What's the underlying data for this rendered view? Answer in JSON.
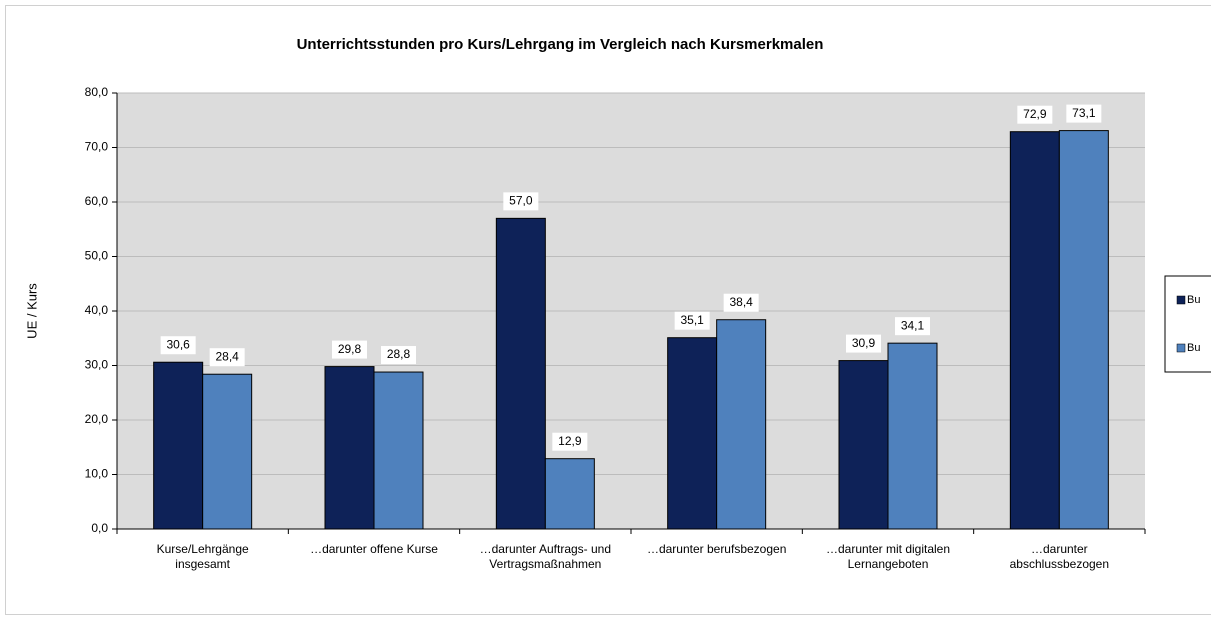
{
  "chart_data": {
    "type": "bar",
    "title": "Unterrichtsstunden pro Kurs/Lehrgang im Vergleich nach Kursmerkmalen",
    "y_label": "UE / Kurs",
    "categories": [
      "Kurse/Lehrgänge\ninsgesamt",
      "…darunter offene Kurse",
      "…darunter Auftrags- und\nVertragsmaßnahmen",
      "…darunter berufsbezogen",
      "…darunter mit digitalen\nLernangeboten",
      "…darunter\nabschlussbezogen"
    ],
    "series": [
      {
        "name": "Bu",
        "color": "#0e2258",
        "values": [
          30.6,
          29.8,
          57.0,
          35.1,
          30.9,
          72.9
        ],
        "value_labels": [
          "30,6",
          "29,8",
          "57,0",
          "35,1",
          "30,9",
          "72,9"
        ]
      },
      {
        "name": "Bu",
        "color": "#4f81bd",
        "values": [
          28.4,
          28.8,
          12.9,
          38.4,
          34.1,
          73.1
        ],
        "value_labels": [
          "28,4",
          "28,8",
          "12,9",
          "38,4",
          "34,1",
          "73,1"
        ]
      }
    ],
    "ylim": [
      0,
      80
    ],
    "yticks": [
      {
        "value": 0,
        "label": "0,0"
      },
      {
        "value": 10,
        "label": "10,0"
      },
      {
        "value": 20,
        "label": "20,0"
      },
      {
        "value": 30,
        "label": "30,0"
      },
      {
        "value": 40,
        "label": "40,0"
      },
      {
        "value": 50,
        "label": "50,0"
      },
      {
        "value": 60,
        "label": "60,0"
      },
      {
        "value": 70,
        "label": "70,0"
      },
      {
        "value": 80,
        "label": "80,0"
      }
    ],
    "grid": true,
    "legend": "right"
  }
}
